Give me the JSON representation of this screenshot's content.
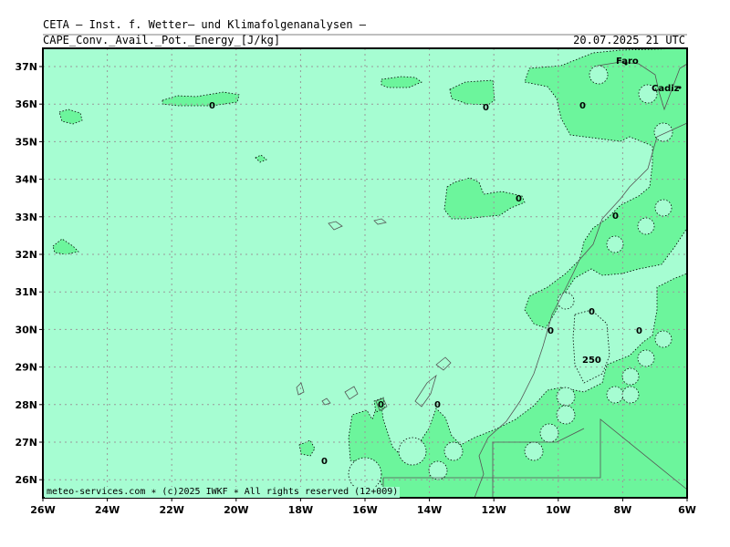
{
  "header": {
    "title": "CETA — Inst. f. Wetter— und Klimafolgenanalysen —",
    "field": "CAPE_Conv._Avail._Pot._Energy_[J/kg]",
    "valid_time": "20.07.2025 21 UTC"
  },
  "footer": {
    "credit": "meteo-services.com ∗ (c)2025 IWKF ∗ All rights reserved (12+009)"
  },
  "map": {
    "lat_labels": [
      "37N",
      "36N",
      "35N",
      "34N",
      "33N",
      "32N",
      "31N",
      "30N",
      "29N",
      "28N",
      "27N",
      "26N"
    ],
    "lon_labels": [
      "26W",
      "24W",
      "22W",
      "20W",
      "18W",
      "16W",
      "14W",
      "12W",
      "10W",
      "8W",
      "6W"
    ],
    "place_labels": [
      "Faro",
      "Cadiz"
    ],
    "contour_labels": [
      "0",
      "0",
      "0",
      "0",
      "0",
      "0",
      "0",
      "0",
      "0",
      "0",
      "0",
      "250"
    ],
    "colors": {
      "cape_zero": "#a6fdd2",
      "cape_low": "#6cf59c",
      "frame": "#000000",
      "grid": "#999999",
      "coast": "#555555"
    }
  }
}
